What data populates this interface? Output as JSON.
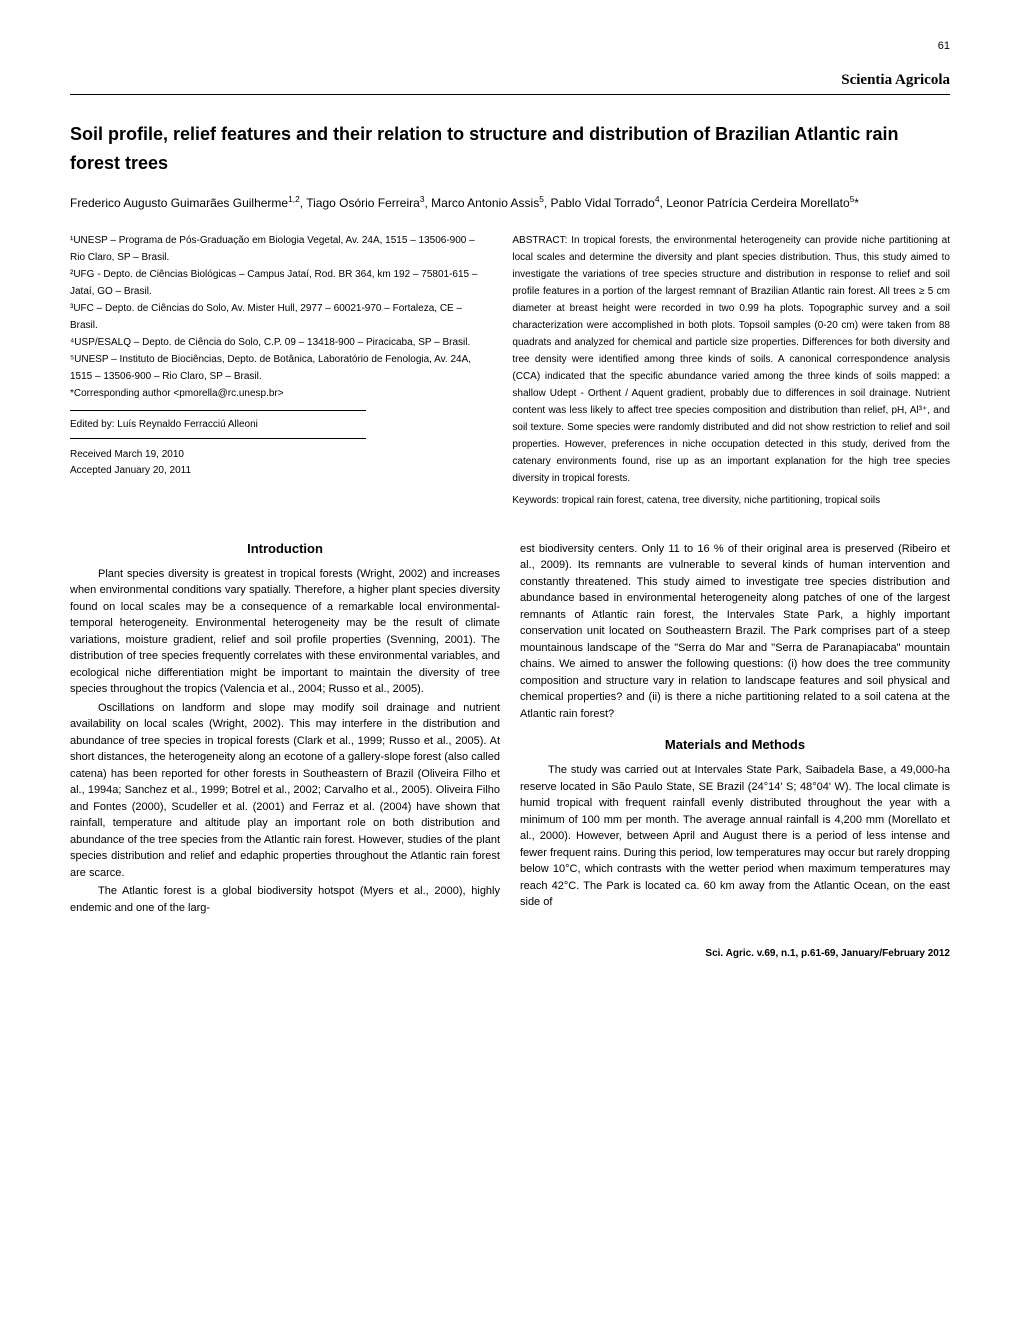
{
  "page_number": "61",
  "journal_name": "Scientia Agricola",
  "title": "Soil profile, relief features and their relation to structure and distribution of Brazilian Atlantic rain forest trees",
  "authors_html": "Frederico Augusto Guimarães Guilherme<sup>1,2</sup>, Tiago Osório Ferreira<sup>3</sup>, Marco Antonio Assis<sup>5</sup>, Pablo Vidal Torrado<sup>4</sup>, Leonor Patrícia Cerdeira Morellato<sup>5</sup>*",
  "affiliations": [
    "¹UNESP – Programa de Pós-Graduação em Biologia Vegetal, Av. 24A, 1515 – 13506-900 – Rio Claro, SP – Brasil.",
    "²UFG - Depto. de Ciências Biológicas – Campus Jataí, Rod. BR 364, km 192 – 75801-615 – Jataí, GO – Brasil.",
    "³UFC – Depto. de Ciências do Solo, Av. Mister Hull, 2977 – 60021-970 – Fortaleza, CE – Brasil.",
    "⁴USP/ESALQ – Depto. de Ciência do Solo, C.P. 09 – 13418-900 – Piracicaba, SP – Brasil.",
    "⁵UNESP – Instituto de Biociências, Depto. de Botânica, Laboratório de Fenologia, Av. 24A, 1515 – 13506-900 – Rio Claro, SP – Brasil.",
    "*Corresponding author <pmorella@rc.unesp.br>"
  ],
  "editor": "Edited by: Luís Reynaldo Ferracciú Alleoni",
  "received": "Received March 19, 2010",
  "accepted": "Accepted January 20, 2011",
  "abstract": "ABSTRACT: In tropical forests, the environmental heterogeneity can provide niche partitioning at local scales and determine the diversity and plant species distribution. Thus, this study aimed to investigate the variations of tree species structure and distribution in response to relief and soil profile features in a portion of the largest remnant of Brazilian Atlantic rain forest. All trees ≥ 5 cm diameter at breast height were recorded in two 0.99 ha plots. Topographic survey and a soil characterization were accomplished in both plots. Topsoil samples (0-20 cm) were taken from 88 quadrats and analyzed for chemical and particle size properties. Differences for both diversity and tree density were identified among three kinds of soils. A canonical correspondence analysis (CCA) indicated that the specific abundance varied among the three kinds of soils mapped: a shallow Udept - Orthent / Aquent gradient, probably due to differences in soil drainage. Nutrient content was less likely to affect tree species composition and distribution than relief, pH, Al³⁺, and soil texture. Some species were randomly distributed and did not show restriction to relief and soil properties. However, preferences in niche occupation detected in this study, derived from the catenary environments found, rise up as an important explanation for the high tree species diversity in tropical forests.",
  "keywords": "Keywords: tropical rain forest, catena, tree diversity, niche partitioning, tropical soils",
  "sections": {
    "introduction": {
      "heading": "Introduction",
      "paragraphs": [
        "Plant species diversity is greatest in tropical forests (Wright, 2002) and increases when environmental conditions vary spatially. Therefore, a higher plant species diversity found on local scales may be a consequence of a remarkable local environmental-temporal heterogeneity. Environmental heterogeneity may be the result of climate variations, moisture gradient, relief and soil profile properties (Svenning, 2001). The distribution of tree species frequently correlates with these environmental variables, and ecological niche differentiation might be important to maintain the diversity of tree species throughout the tropics (Valencia et al., 2004; Russo et al., 2005).",
        "Oscillations on landform and slope may modify soil drainage and nutrient availability on local scales (Wright, 2002). This may interfere in the distribution and abundance of tree species in tropical forests (Clark et al., 1999; Russo et al., 2005). At short distances, the heterogeneity along an ecotone of a gallery-slope forest (also called catena) has been reported for other forests in Southeastern of Brazil (Oliveira Filho et al., 1994a; Sanchez et al., 1999; Botrel et al., 2002; Carvalho et al., 2005). Oliveira Filho and Fontes (2000), Scudeller et al. (2001) and Ferraz et al. (2004) have shown that rainfall, temperature and altitude play an important role on both distribution and abundance of the tree species from the Atlantic rain forest. However, studies of the plant species distribution and relief and edaphic properties throughout the Atlantic rain forest are scarce.",
        "The Atlantic forest is a global biodiversity hotspot (Myers et al., 2000), highly endemic and one of the larg-"
      ]
    },
    "intro_continued": [
      "est biodiversity centers. Only 11 to 16 % of their original area is preserved (Ribeiro et al., 2009). Its remnants are vulnerable to several kinds of human intervention and constantly threatened. This study aimed to investigate tree species distribution and abundance based in environmental heterogeneity along patches of one of the largest remnants of Atlantic rain forest, the Intervales State Park, a highly important conservation unit located on Southeastern Brazil. The Park comprises part of a steep mountainous landscape of the \"Serra do Mar and \"Serra de Paranapiacaba\" mountain chains. We aimed to answer the following questions: (i) how does the tree community composition and structure vary in relation to landscape features and soil physical and chemical properties? and (ii) is there a niche partitioning related to a soil catena at the Atlantic rain forest?"
    ],
    "methods": {
      "heading": "Materials and Methods",
      "paragraphs": [
        "The study was carried out at Intervales State Park, Saibadela Base, a 49,000-ha reserve located in São Paulo State, SE Brazil (24°14' S; 48°04' W). The local climate is humid tropical with frequent rainfall evenly distributed throughout the year with a minimum of 100 mm per month. The average annual rainfall is 4,200 mm (Morellato et al., 2000). However, between April and August there is a period of less intense and fewer frequent rains. During this period, low temperatures may occur but rarely dropping below 10°C, which contrasts with the wetter period when maximum temperatures may reach 42°C. The Park is located ca. 60 km away from the Atlantic Ocean, on the east side of"
      ]
    }
  },
  "footer": "Sci. Agric. v.69, n.1, p.61-69, January/February 2012",
  "colors": {
    "text": "#000000",
    "background": "#ffffff",
    "divider": "#000000"
  },
  "typography": {
    "body_font": "Arial, Helvetica, sans-serif",
    "journal_font": "Georgia, Times New Roman, serif",
    "title_size_pt": 18,
    "author_size_pt": 12,
    "affil_size_pt": 10,
    "abstract_size_pt": 10,
    "body_size_pt": 11,
    "heading_size_pt": 13
  }
}
